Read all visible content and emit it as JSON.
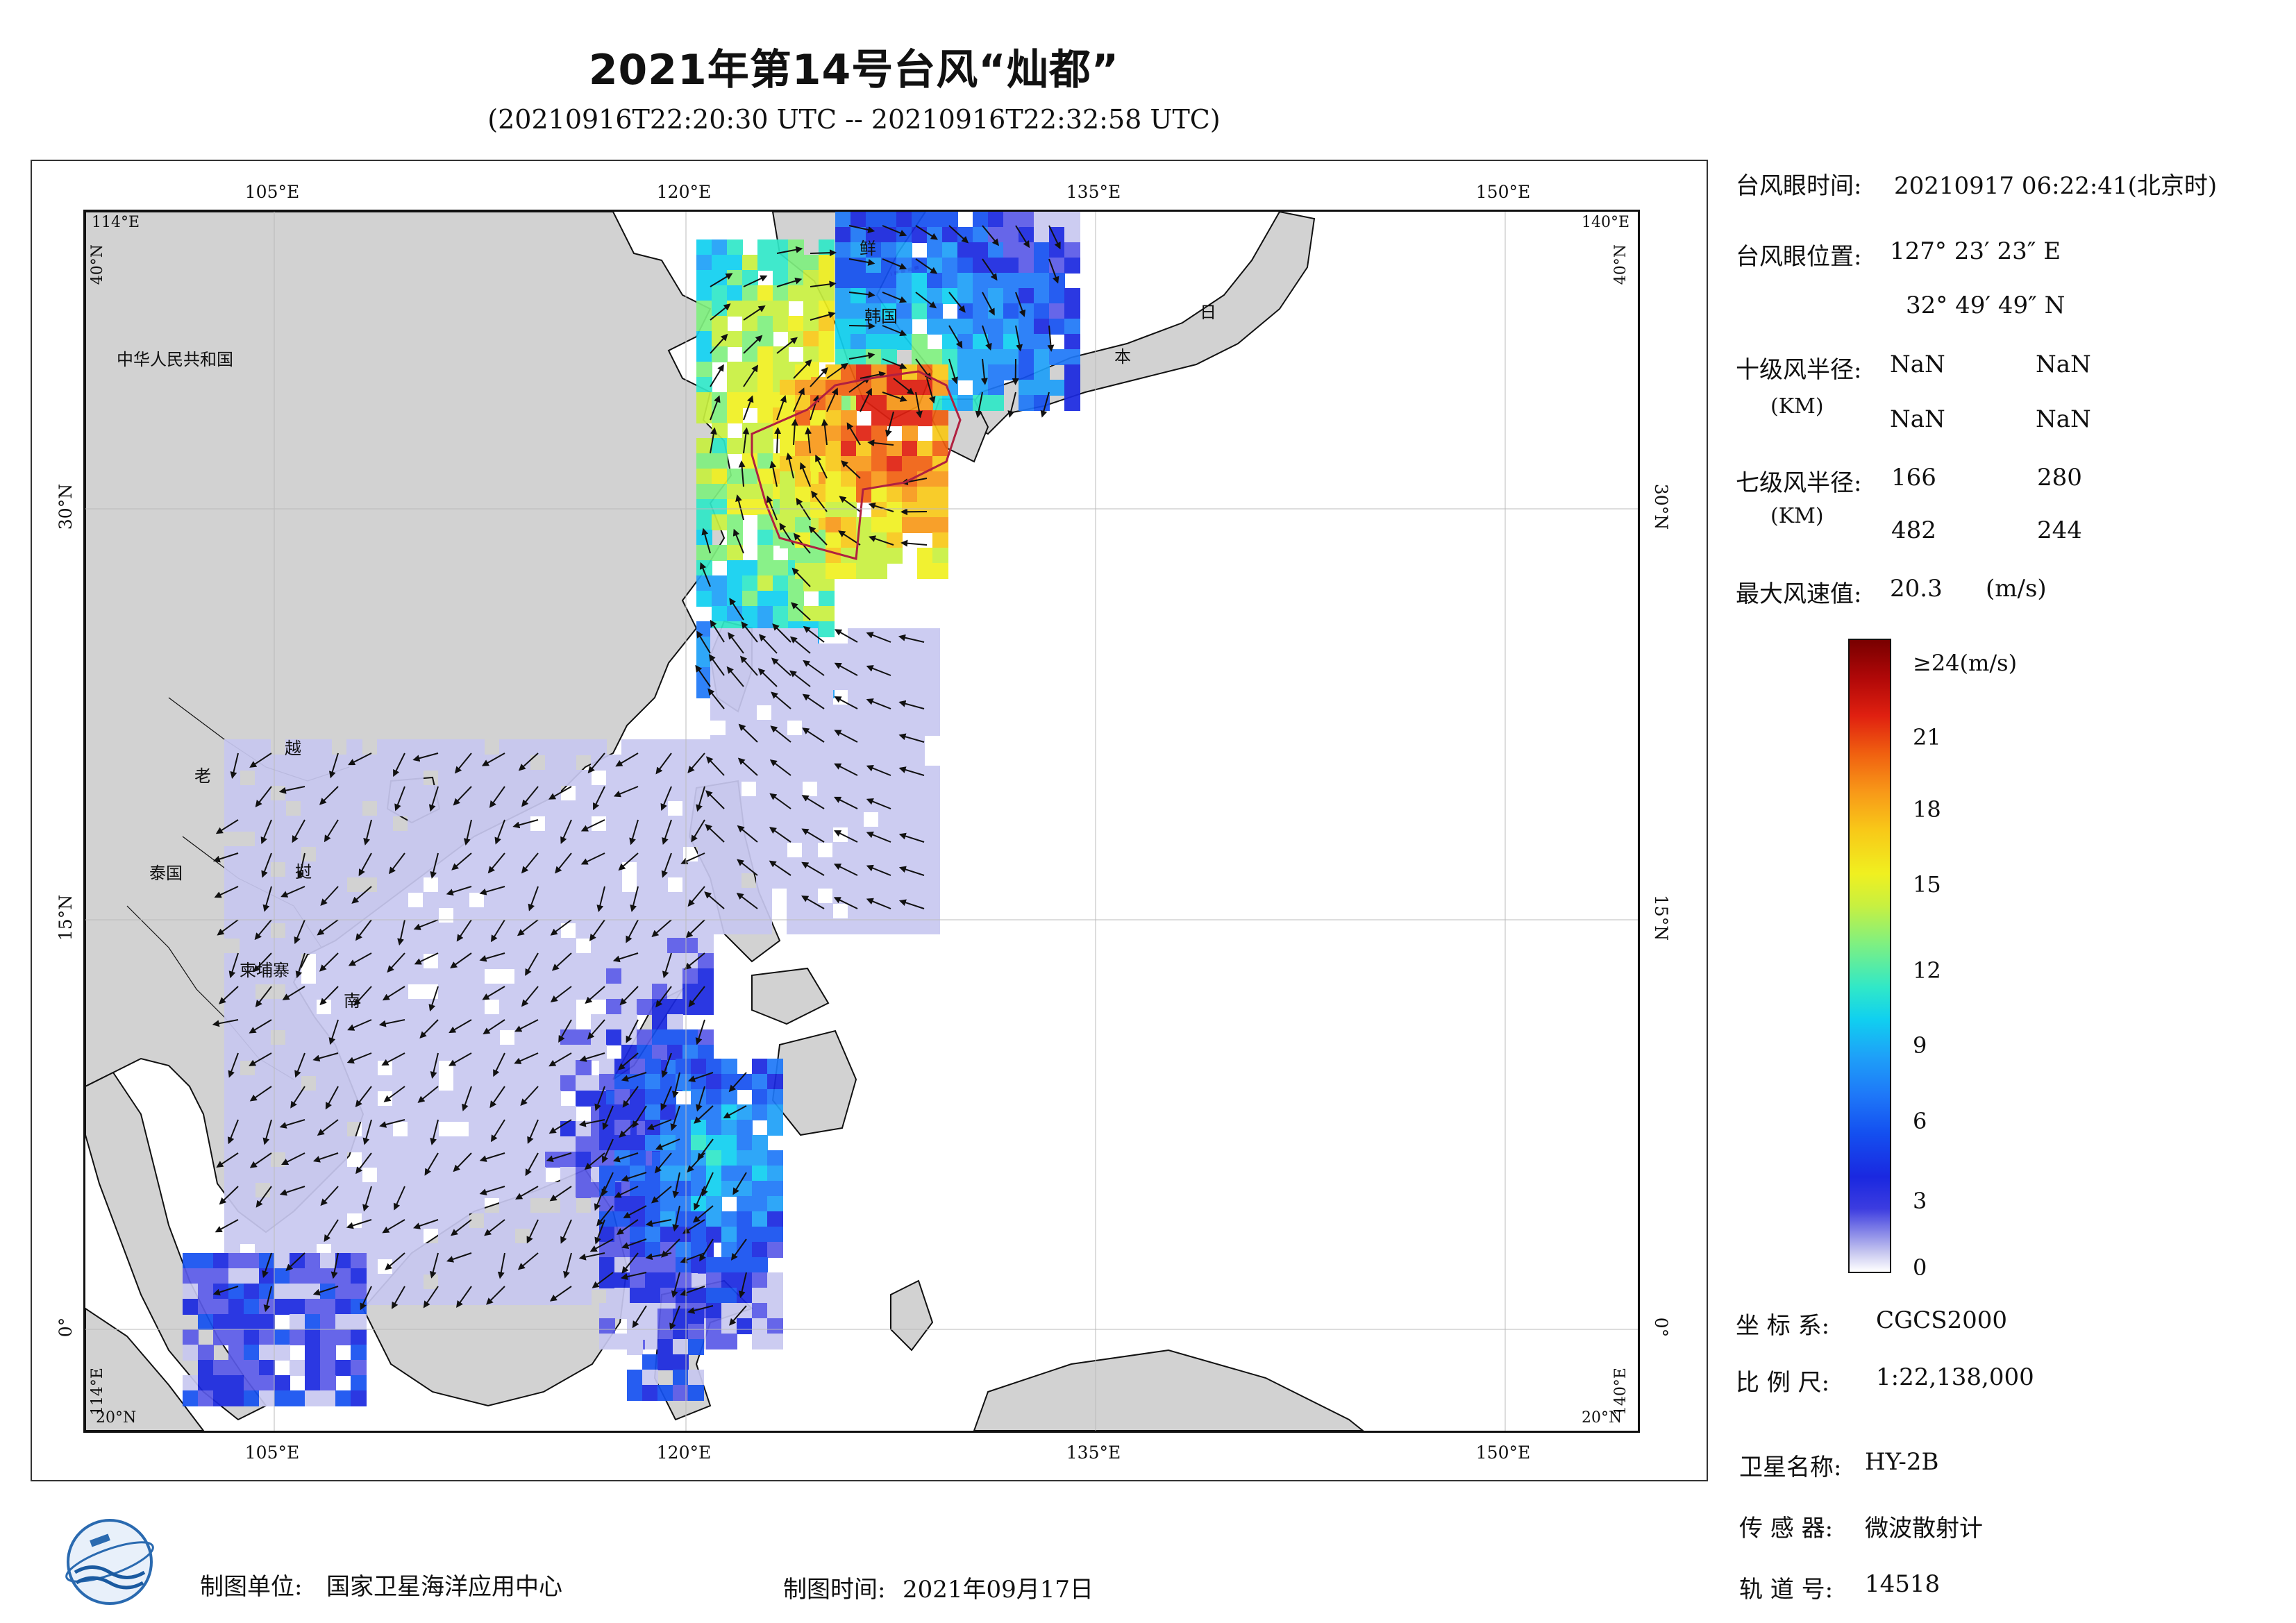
{
  "title": "2021年第14号台风“灿都”",
  "subtitle": "(20210916T22:20:30 UTC -- 20210916T22:32:58 UTC)",
  "map": {
    "lon_ticks_top": [
      "105°E",
      "120°E",
      "135°E",
      "150°E"
    ],
    "lon_ticks_bottom": [
      "105°E",
      "120°E",
      "135°E",
      "150°E"
    ],
    "lat_ticks_left": [
      "30°N",
      "15°N",
      "0°"
    ],
    "lat_ticks_right": [
      "30°N",
      "15°N",
      "0°"
    ],
    "corner_tl_lon": "114°E",
    "corner_tl_lat": "40°N",
    "corner_tr_lon": "140°E",
    "corner_tr_lat": "40°N",
    "corner_bl_lon": "114°E",
    "corner_bl_lat": "20°N",
    "corner_br_lon": "140°E",
    "corner_br_lat": "20°N",
    "place_labels": [
      "中华人民共和国",
      "鲜",
      "韩国",
      "日",
      "本",
      "老",
      "越",
      "泰国",
      "挝",
      "柬埔寨",
      "南"
    ],
    "colors": {
      "land": "#d2d2d2",
      "sea": "#ffffff",
      "coast": "#111111",
      "typhoon_track": "#b02040"
    }
  },
  "info": {
    "eye_time_label": "台风眼时间:",
    "eye_time_value": "20210917 06:22:41(北京时)",
    "eye_pos_label": "台风眼位置:",
    "eye_lon": "127° 23′ 23″ E",
    "eye_lat": "32° 49′ 49″ N",
    "r10_label": "十级风半径:",
    "r10_unit": "(KM)",
    "r10_values": [
      "NaN",
      "NaN",
      "NaN",
      "NaN"
    ],
    "r7_label": "七级风半径:",
    "r7_unit": "(KM)",
    "r7_values": [
      "166",
      "280",
      "482",
      "244"
    ],
    "max_wind_label": "最大风速值:",
    "max_wind_value": "20.3",
    "max_wind_unit": "(m/s)"
  },
  "colorbar": {
    "labels": [
      "≥24(m/s)",
      "21",
      "18",
      "15",
      "12",
      "9",
      "6",
      "3",
      "0"
    ],
    "values": [
      24,
      21,
      18,
      15,
      12,
      9,
      6,
      3,
      0
    ],
    "range": [
      0,
      24
    ],
    "unit": "m/s"
  },
  "meta": {
    "crs_label": "坐 标 系:",
    "crs_value": "CGCS2000",
    "scale_label": "比 例 尺:",
    "scale_value": "1:22,138,000",
    "sat_label": "卫星名称:",
    "sat_value": "HY-2B",
    "sensor_label": "传 感 器:",
    "sensor_value": "微波散射计",
    "orbit_label": "轨 道 号:",
    "orbit_value": "14518"
  },
  "footer": {
    "org_label": "制图单位:",
    "org_value": "国家卫星海洋应用中心",
    "date_label": "制图时间:",
    "date_value": "2021年09月17日"
  }
}
